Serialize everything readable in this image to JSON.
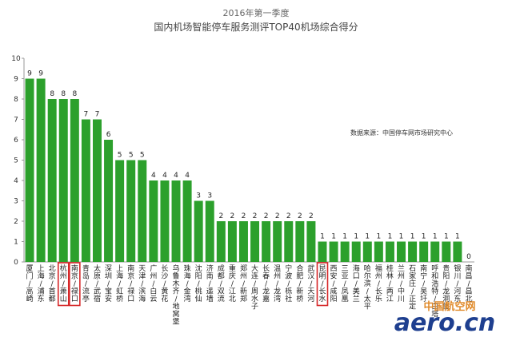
{
  "chart_data": {
    "type": "bar",
    "title": "2016年第一季度",
    "subtitle": "国内机场智能停车服务测评TOP40机场综合得分",
    "source_note": "数据来源：中国停车网市场研究中心",
    "ylim": [
      0,
      10
    ],
    "yticks": [
      0,
      1,
      2,
      3,
      4,
      5,
      6,
      7,
      8,
      9,
      10
    ],
    "grid": false,
    "bar_color": "#2ca02c",
    "highlight_color": "#d62728",
    "highlighted_categories": [
      "杭州/萧山",
      "南京/禄口",
      "昆明/长水"
    ],
    "categories": [
      "厦门/高崎",
      "上海/浦东",
      "北京/首都",
      "杭州/萧山",
      "南京/禄口",
      "青岛/流亭",
      "太原/武宿",
      "深圳/宝安",
      "上海/虹桥",
      "南京/禄口",
      "天津/滨海",
      "广州/白云",
      "长沙/黄花",
      "乌鲁木齐/地窝堡",
      "珠海/金湾",
      "沈阳/桃仙",
      "济南/遥墙",
      "成都/双流",
      "重庆/江北",
      "郑州/新郑",
      "大连/周水子",
      "长春/龙嘉",
      "温州/龙湾",
      "宁波/栎社",
      "合肥/新桥",
      "武汉/天河",
      "昆明/长水",
      "西安/咸阳",
      "三亚/凤凰",
      "海口/美兰",
      "哈尔滨/太平",
      "福州/长乐",
      "桂林/两江",
      "兰州/中川",
      "石家庄/正定",
      "南宁/吴圩",
      "呼和浩特/白塔",
      "贵阳/龙洞堡",
      "银川/河东",
      "南昌/昌北"
    ],
    "values": [
      9,
      9,
      8,
      8,
      8,
      7,
      7,
      6,
      5,
      5,
      5,
      4,
      4,
      4,
      4,
      3,
      3,
      2,
      2,
      2,
      2,
      2,
      2,
      2,
      2,
      2,
      1,
      1,
      1,
      1,
      1,
      1,
      1,
      1,
      1,
      1,
      1,
      1,
      1,
      0
    ]
  },
  "watermark": {
    "line1": "中国航空网",
    "line2": "aero.cn"
  }
}
